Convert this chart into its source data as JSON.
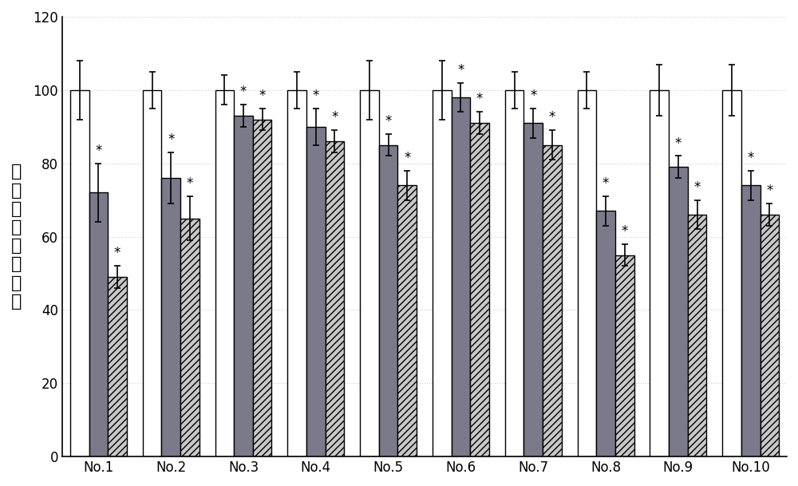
{
  "categories": [
    "No.1",
    "No.2",
    "No.3",
    "No.4",
    "No.5",
    "No.6",
    "No.7",
    "No.8",
    "No.9",
    "No.10"
  ],
  "bar1_values": [
    100,
    100,
    100,
    100,
    100,
    100,
    100,
    100,
    100,
    100
  ],
  "bar2_values": [
    72,
    76,
    93,
    90,
    85,
    98,
    91,
    67,
    79,
    74
  ],
  "bar3_values": [
    49,
    65,
    92,
    86,
    74,
    91,
    85,
    55,
    66,
    66
  ],
  "bar1_errors": [
    8,
    5,
    4,
    5,
    8,
    8,
    5,
    5,
    7,
    7
  ],
  "bar2_errors": [
    8,
    7,
    3,
    5,
    3,
    4,
    4,
    4,
    3,
    4
  ],
  "bar3_errors": [
    3,
    6,
    3,
    3,
    4,
    3,
    4,
    3,
    4,
    3
  ],
  "bar1_color": "#ffffff",
  "bar2_color": "#7a7a8a",
  "bar3_hatch": "////",
  "bar3_color": "#c8c8c8",
  "edgecolor": "#000000",
  "ylabel": "生物\n膜形\n成百\n分比",
  "ylim": [
    0,
    120
  ],
  "yticks": [
    0,
    20,
    40,
    60,
    80,
    100,
    120
  ],
  "bar_width": 0.26,
  "star_fontsize": 12,
  "ylabel_fontsize": 16,
  "tick_fontsize": 12,
  "background_color": "#ffffff",
  "grid_color": "#d0d0d0"
}
